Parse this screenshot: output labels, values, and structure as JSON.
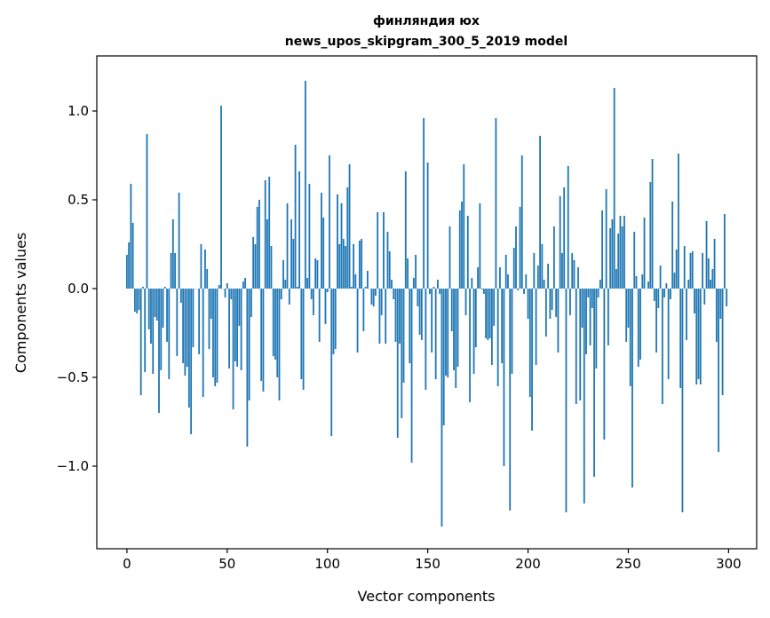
{
  "chart_data": {
    "type": "bar",
    "title": "финляндия юх",
    "subtitle": "news_upos_skipgram_300_5_2019 model",
    "xlabel": "Vector components",
    "ylabel": "Components values",
    "xlim": [
      -15,
      314
    ],
    "ylim": [
      -1.465,
      1.31
    ],
    "xticks": [
      0,
      50,
      100,
      150,
      200,
      250,
      300
    ],
    "xtick_labels": [
      "0",
      "50",
      "100",
      "150",
      "200",
      "250",
      "300"
    ],
    "yticks": [
      -1.0,
      -0.5,
      0.0,
      0.5,
      1.0
    ],
    "ytick_labels": [
      "−1.0",
      "−0.5",
      "0.0",
      "0.5",
      "1.0"
    ],
    "grid": false,
    "bar_color": "#1f77b4",
    "bar_width": 0.8,
    "values": [
      0.19,
      0.26,
      0.59,
      0.37,
      -0.13,
      -0.14,
      -0.12,
      -0.6,
      0.01,
      -0.47,
      0.87,
      -0.23,
      -0.31,
      -0.48,
      -0.16,
      -0.18,
      -0.7,
      -0.46,
      -0.22,
      0.01,
      -0.3,
      -0.51,
      0.2,
      0.39,
      0.2,
      -0.38,
      0.54,
      -0.08,
      -0.42,
      -0.49,
      -0.44,
      -0.67,
      -0.82,
      -0.33,
      0.0,
      0.0,
      -0.37,
      0.25,
      -0.61,
      0.22,
      0.11,
      -0.34,
      -0.17,
      -0.5,
      -0.55,
      -0.53,
      0.02,
      1.03,
      0.0,
      -0.05,
      0.03,
      -0.45,
      -0.06,
      -0.68,
      -0.41,
      -0.44,
      -0.21,
      -0.46,
      0.04,
      0.06,
      -0.89,
      -0.63,
      -0.16,
      0.29,
      0.25,
      0.46,
      0.5,
      -0.52,
      -0.58,
      0.61,
      0.39,
      0.63,
      0.24,
      -0.38,
      -0.4,
      -0.5,
      -0.63,
      -0.06,
      0.16,
      0.05,
      0.48,
      -0.09,
      0.39,
      0.28,
      0.81,
      0.01,
      0.66,
      -0.51,
      -0.57,
      1.17,
      0.06,
      0.59,
      -0.06,
      -0.15,
      0.17,
      0.16,
      -0.3,
      0.54,
      0.4,
      -0.2,
      -0.02,
      0.75,
      -0.83,
      -0.37,
      -0.34,
      0.53,
      0.25,
      0.48,
      0.28,
      0.24,
      0.57,
      0.7,
      0.01,
      0.25,
      0.08,
      -0.36,
      0.27,
      0.28,
      -0.24,
      0.01,
      0.1,
      0.0,
      -0.09,
      -0.1,
      -0.04,
      0.43,
      -0.31,
      -0.15,
      0.43,
      -0.31,
      0.32,
      0.21,
      0.05,
      -0.06,
      -0.3,
      -0.84,
      -0.31,
      -0.73,
      -0.53,
      0.66,
      0.17,
      -0.42,
      -0.98,
      0.06,
      0.19,
      -0.1,
      -0.26,
      -0.29,
      0.96,
      -0.57,
      0.71,
      -0.03,
      -0.36,
      0.01,
      -0.51,
      0.05,
      -0.03,
      -1.34,
      -0.77,
      -0.49,
      -0.5,
      0.35,
      -0.24,
      -0.46,
      -0.56,
      -0.44,
      0.44,
      0.49,
      0.7,
      -0.15,
      0.41,
      -0.64,
      0.06,
      -0.48,
      -0.33,
      0.12,
      0.48,
      -0.005,
      -0.03,
      -0.28,
      -0.29,
      -0.28,
      -0.43,
      -0.21,
      0.96,
      -0.55,
      0.12,
      -0.42,
      -1.0,
      0.19,
      0.08,
      -1.25,
      -0.48,
      0.23,
      0.35,
      -0.01,
      0.46,
      0.75,
      -0.03,
      0.08,
      -0.17,
      -0.61,
      -0.8,
      0.2,
      -0.43,
      0.13,
      0.86,
      0.25,
      0.05,
      -0.27,
      0.14,
      -0.17,
      -0.12,
      0.35,
      -0.16,
      -0.36,
      0.52,
      0.2,
      0.57,
      -1.26,
      0.69,
      -0.15,
      0.2,
      0.16,
      -0.65,
      0.12,
      -0.63,
      -0.22,
      -1.21,
      -0.37,
      -0.05,
      -0.32,
      -0.11,
      -1.06,
      -0.45,
      -0.05,
      0.05,
      0.44,
      -0.85,
      0.56,
      -0.32,
      0.34,
      0.39,
      1.13,
      0.11,
      0.31,
      0.41,
      0.35,
      0.41,
      -0.3,
      -0.22,
      -0.55,
      -1.12,
      0.32,
      0.07,
      -0.44,
      -0.4,
      0.08,
      0.4,
      0.0,
      0.04,
      0.6,
      0.73,
      -0.07,
      -0.36,
      -0.11,
      0.13,
      -0.65,
      -0.05,
      0.03,
      -0.51,
      -0.06,
      0.49,
      0.09,
      0.22,
      0.76,
      -0.56,
      -1.26,
      0.24,
      -0.29,
      0.05,
      0.2,
      0.21,
      -0.14,
      -0.54,
      -0.51,
      -0.54,
      0.2,
      -0.09,
      0.38,
      0.17,
      0.05,
      0.11,
      0.28,
      -0.3,
      -0.92,
      -0.17,
      -0.6,
      0.42,
      -0.1
    ]
  }
}
